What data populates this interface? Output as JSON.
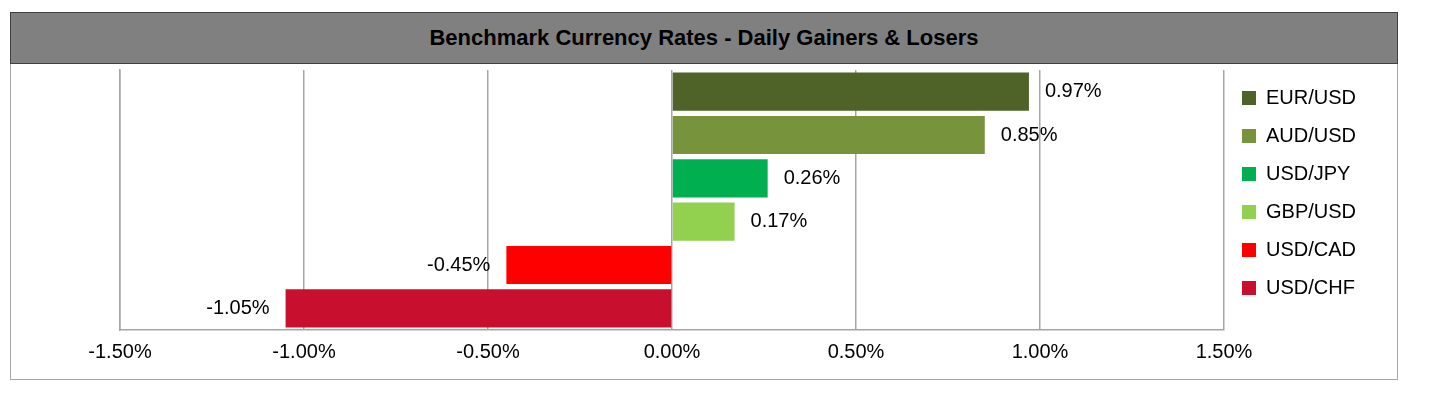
{
  "chart_data": {
    "type": "bar",
    "title": "Benchmark Currency Rates - Daily Gainers & Losers",
    "orientation": "horizontal",
    "categories": [
      "EUR/USD",
      "AUD/USD",
      "USD/JPY",
      "GBP/USD",
      "USD/CAD",
      "USD/CHF"
    ],
    "values": [
      0.97,
      0.85,
      0.26,
      0.17,
      -0.45,
      -1.05
    ],
    "value_labels": [
      "0.97%",
      "0.85%",
      "0.26%",
      "0.17%",
      "-0.45%",
      "-1.05%"
    ],
    "colors": [
      "#4f6228",
      "#77933c",
      "#00b050",
      "#92d050",
      "#ff0000",
      "#c8102e"
    ],
    "xlim": [
      -1.5,
      1.5
    ],
    "xticks": [
      {
        "value": -1.5,
        "label": "-1.50%"
      },
      {
        "value": -1.0,
        "label": "-1.00%"
      },
      {
        "value": -0.5,
        "label": "-0.50%"
      },
      {
        "value": 0,
        "label": "0.00%"
      },
      {
        "value": 0.5,
        "label": "0.50%"
      },
      {
        "value": 1.0,
        "label": "1.00%"
      },
      {
        "value": 1.5,
        "label": "1.50%"
      }
    ],
    "grid": true,
    "legend": "right",
    "data_labels": true,
    "tick_labels": "x"
  }
}
